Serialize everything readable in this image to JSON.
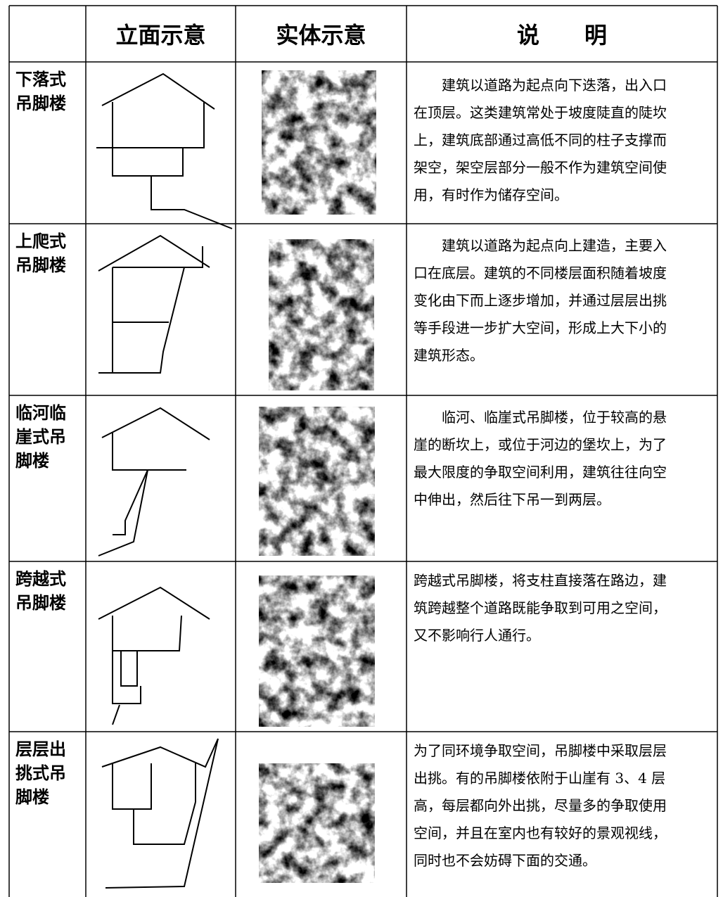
{
  "table": {
    "header": [
      "立面示意",
      "实体示意",
      "说　　明"
    ],
    "rows": [
      {
        "name": [
          "下落式",
          "吊脚楼"
        ],
        "description": [
          "建筑以道路为起点向下迭落，出入口",
          "在顶层。这类建筑常处于坡度陡直的陡坎",
          "上，建筑底部通过高低不同的柱子支撑而",
          "架空，架空层部分一般不作为建筑空间使",
          "用，有时作为储存空间。"
        ]
      },
      {
        "name": [
          "上爬式",
          "吊脚楼"
        ],
        "description": [
          "建筑以道路为起点向上建造，主要入",
          "口在底层。建筑的不同楼层面积随着坡度",
          "变化由下而上逐步增加，并通过层层出挑",
          "等手段进一步扩大空间，形成上大下小的",
          "建筑形态。"
        ]
      },
      {
        "name": [
          "临河临",
          "崖式吊",
          "脚楼"
        ],
        "description": [
          "临河、临崖式吊脚楼，位于较高的悬",
          "崖的断坎上，或位于河边的堡坎上，为了",
          "最大限度的争取空间利用，建筑往往向空",
          "中伸出，然后往下吊一到两层。"
        ]
      },
      {
        "name": [
          "跨越式",
          "吊脚楼"
        ],
        "description": [
          "跨越式吊脚楼，将支柱直接落在路边，建",
          "筑跨越整个道路既能争取到可用之空间，",
          "又不影响行人通行。"
        ]
      },
      {
        "name": [
          "层层出",
          "挑式吊",
          "脚楼"
        ],
        "description": [
          "为了同环境争取空间，吊脚楼中采取层层",
          "出挑。有的吊脚楼依附于山崖有 3、4 层",
          "高，每层都向外出挑，尽量多的争取使用",
          "空间，并且在室内也有较好的景观视线，",
          "同时也不会妨碍下面的交通。"
        ]
      }
    ]
  }
}
